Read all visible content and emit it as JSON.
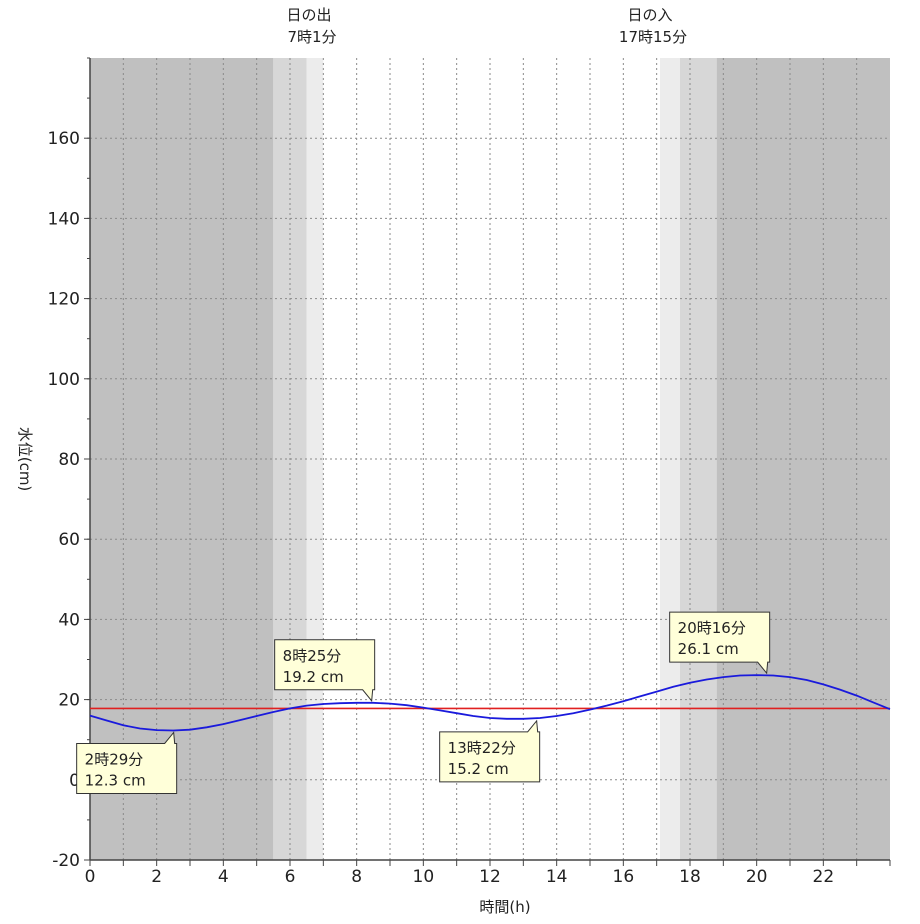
{
  "chart_data": {
    "type": "line",
    "title": "",
    "xlabel": "時間(h)",
    "ylabel": "水位(cm)",
    "xlim": [
      0,
      24
    ],
    "ylim": [
      -20,
      180
    ],
    "xticks": [
      0,
      2,
      4,
      6,
      8,
      10,
      12,
      14,
      16,
      18,
      20,
      22
    ],
    "yticks": [
      -20,
      0,
      20,
      40,
      60,
      80,
      100,
      120,
      140,
      160
    ],
    "grid": true,
    "colors": {
      "night": "#c0c0c0",
      "twilight_dark": "#d7d7d7",
      "twilight_light": "#ececec",
      "day": "#ffffff",
      "tide_line": "#1a1adc",
      "reference_line": "#e02020",
      "callout_fill": "#ffffd9"
    },
    "shading": [
      {
        "from": 0,
        "to": 5.5,
        "kind": "night"
      },
      {
        "from": 5.5,
        "to": 6.5,
        "kind": "twilight_dark"
      },
      {
        "from": 6.5,
        "to": 7.0,
        "kind": "twilight_light"
      },
      {
        "from": 7.0,
        "to": 17.1,
        "kind": "day"
      },
      {
        "from": 17.1,
        "to": 17.7,
        "kind": "twilight_light"
      },
      {
        "from": 17.7,
        "to": 18.8,
        "kind": "twilight_dark"
      },
      {
        "from": 18.8,
        "to": 24,
        "kind": "night"
      }
    ],
    "reference_line": {
      "y": 17.8
    },
    "series": [
      {
        "x": [
          0,
          0.5,
          1,
          1.5,
          2,
          2.5,
          3,
          3.5,
          4,
          4.5,
          5,
          5.5,
          6,
          6.5,
          7,
          7.5,
          8,
          8.5,
          9,
          9.5,
          10,
          10.5,
          11,
          11.5,
          12,
          12.5,
          13,
          13.5,
          14,
          14.5,
          15,
          15.5,
          16,
          16.5,
          17,
          17.5,
          18,
          18.5,
          19,
          19.5,
          20,
          20.5,
          21,
          21.5,
          22,
          22.5,
          23,
          23.5,
          24
        ],
        "y": [
          16.0,
          14.8,
          13.6,
          12.8,
          12.4,
          12.3,
          12.5,
          13.1,
          13.9,
          14.9,
          15.9,
          16.9,
          17.8,
          18.5,
          18.9,
          19.1,
          19.2,
          19.2,
          19.0,
          18.6,
          18.0,
          17.3,
          16.6,
          15.9,
          15.4,
          15.2,
          15.2,
          15.4,
          15.9,
          16.6,
          17.5,
          18.5,
          19.6,
          20.8,
          22.0,
          23.2,
          24.2,
          25.0,
          25.6,
          26.0,
          26.1,
          26.0,
          25.6,
          24.9,
          23.8,
          22.5,
          21.0,
          19.3,
          17.6
        ]
      }
    ],
    "annotations": [
      {
        "x": 8.42,
        "y": 19.2,
        "line1": "8時25分",
        "line2": "19.2 cm",
        "placement": "above-left"
      },
      {
        "x": 2.48,
        "y": 12.3,
        "line1": "2時29分",
        "line2": "12.3 cm",
        "placement": "below-left"
      },
      {
        "x": 13.37,
        "y": 15.2,
        "line1": "13時22分",
        "line2": "15.2 cm",
        "placement": "below-left"
      },
      {
        "x": 20.27,
        "y": 26.1,
        "line1": "20時16分",
        "line2": "26.1 cm",
        "placement": "above-left"
      }
    ],
    "sun_events": [
      {
        "x": 7.02,
        "line1": "日の出",
        "line2": "7時1分"
      },
      {
        "x": 17.25,
        "line1": "日の入",
        "line2": "17時15分"
      }
    ]
  }
}
